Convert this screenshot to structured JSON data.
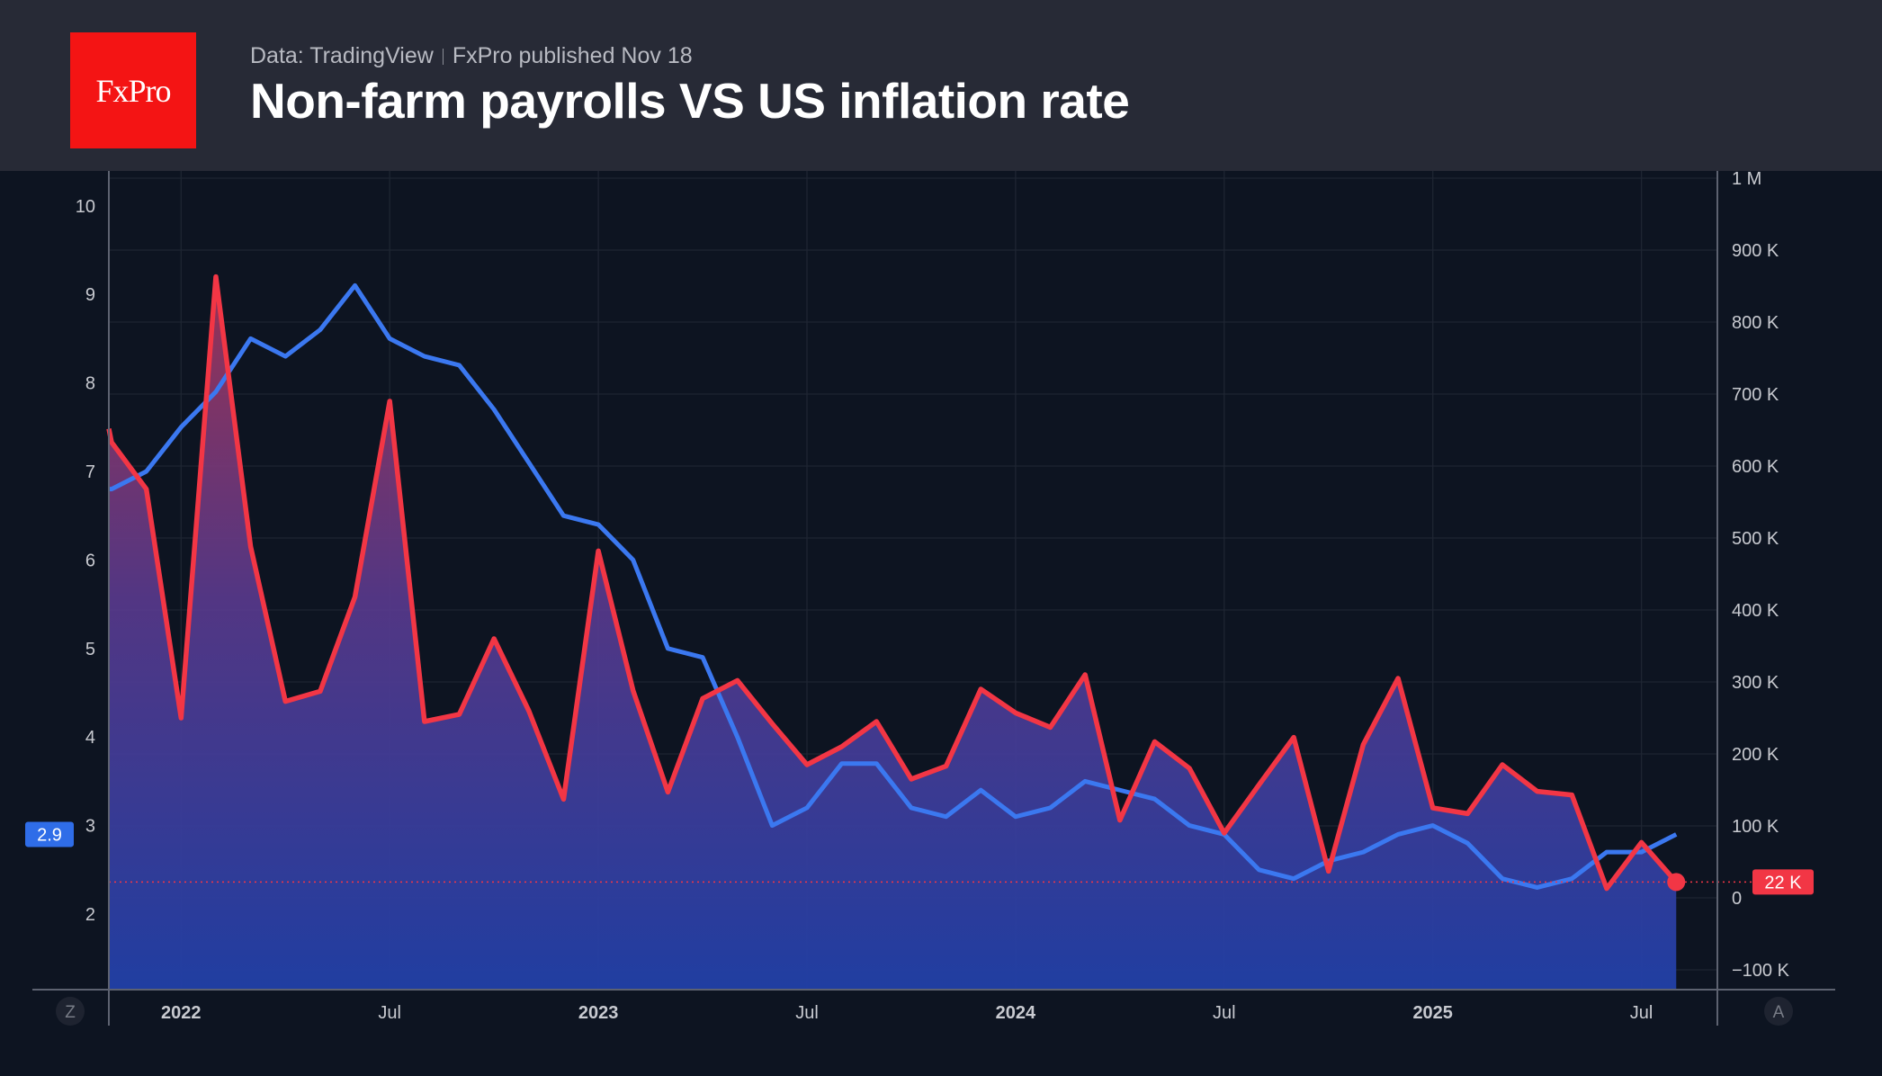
{
  "header": {
    "logo": "FxPro",
    "source": "Data: TradingView",
    "published": "FxPro published Nov 18",
    "title": "Non-farm payrolls VS US inflation rate"
  },
  "chart_data": {
    "type": "line",
    "title": "Non-farm payrolls VS US inflation rate",
    "x": [
      "2021-11",
      "2021-12",
      "2022-01",
      "2022-02",
      "2022-03",
      "2022-04",
      "2022-05",
      "2022-06",
      "2022-07",
      "2022-08",
      "2022-09",
      "2022-10",
      "2022-11",
      "2022-12",
      "2023-01",
      "2023-02",
      "2023-03",
      "2023-04",
      "2023-05",
      "2023-06",
      "2023-07",
      "2023-08",
      "2023-09",
      "2023-10",
      "2023-11",
      "2023-12",
      "2024-01",
      "2024-02",
      "2024-03",
      "2024-04",
      "2024-05",
      "2024-06",
      "2024-07",
      "2024-08",
      "2024-09",
      "2024-10",
      "2024-11",
      "2024-12",
      "2025-01",
      "2025-02",
      "2025-03",
      "2025-04",
      "2025-05",
      "2025-06",
      "2025-07",
      "2025-08"
    ],
    "x_ticks": [
      {
        "label": "2022",
        "month": "2022-01",
        "bold": true
      },
      {
        "label": "Jul",
        "month": "2022-07",
        "bold": false
      },
      {
        "label": "2023",
        "month": "2023-01",
        "bold": true
      },
      {
        "label": "Jul",
        "month": "2023-07",
        "bold": false
      },
      {
        "label": "2024",
        "month": "2024-01",
        "bold": true
      },
      {
        "label": "Jul",
        "month": "2024-07",
        "bold": false
      },
      {
        "label": "2025",
        "month": "2025-01",
        "bold": true
      },
      {
        "label": "Jul",
        "month": "2025-07",
        "bold": false
      }
    ],
    "series": [
      {
        "axis": "left",
        "color": "#3b78f0",
        "unit": "%",
        "values": [
          6.8,
          7.0,
          7.5,
          7.9,
          8.5,
          8.3,
          8.6,
          9.1,
          8.5,
          8.3,
          8.2,
          7.7,
          7.1,
          6.5,
          6.4,
          6.0,
          5.0,
          4.9,
          4.0,
          3.0,
          3.2,
          3.7,
          3.7,
          3.2,
          3.1,
          3.4,
          3.1,
          3.2,
          3.5,
          3.4,
          3.3,
          3.0,
          2.9,
          2.5,
          2.4,
          2.6,
          2.7,
          2.9,
          3.0,
          2.8,
          2.4,
          2.3,
          2.4,
          2.7,
          2.7,
          2.9
        ]
      },
      {
        "axis": "right",
        "color": "#f23645",
        "unit": "K",
        "area": true,
        "values": [
          633,
          568,
          250,
          863,
          488,
          273,
          287,
          418,
          690,
          245,
          255,
          360,
          260,
          137,
          482,
          288,
          147,
          277,
          302,
          242,
          185,
          210,
          245,
          165,
          183,
          290,
          257,
          237,
          310,
          108,
          217,
          180,
          90,
          157,
          223,
          37,
          213,
          305,
          125,
          117,
          185,
          148,
          143,
          13,
          77,
          22
        ]
      }
    ],
    "left_axis": {
      "ylim": [
        1,
        10.3
      ],
      "ticks": [
        "2",
        "3",
        "4",
        "5",
        "6",
        "7",
        "8",
        "9",
        "10"
      ]
    },
    "right_axis": {
      "ylim": [
        -125,
        1000
      ],
      "ticks": [
        "−100 K",
        "0",
        "100 K",
        "200 K",
        "300 K",
        "400 K",
        "500 K",
        "600 K",
        "700 K",
        "800 K",
        "900 K",
        "1 M"
      ],
      "tick_values": [
        -100,
        0,
        100,
        200,
        300,
        400,
        500,
        600,
        700,
        800,
        900,
        1000
      ]
    },
    "last_labels": {
      "left": "2.9",
      "right": "22 K"
    },
    "corner_buttons": {
      "left": "Z",
      "right": "A"
    },
    "grid": true
  }
}
